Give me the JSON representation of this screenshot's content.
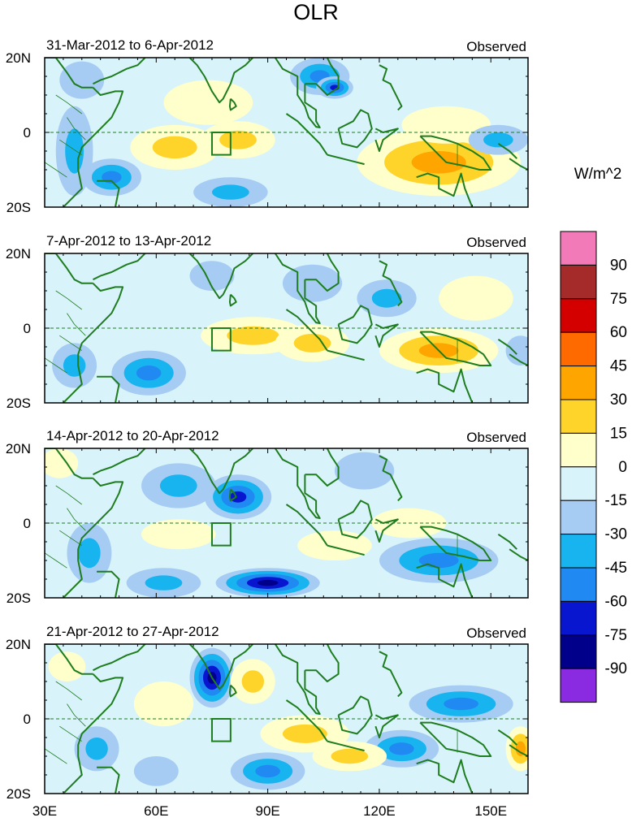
{
  "chart_data": {
    "type": "heatmap",
    "title": "OLR",
    "units_label": "W/m^2",
    "colors": {
      "land_outline": "#1e7d1e",
      "box": "#1e7d1e",
      "equator": "#1e7d1e"
    },
    "x_axis": {
      "range": [
        30,
        160
      ],
      "ticks": [
        30,
        60,
        90,
        120,
        150
      ],
      "tick_labels": [
        "30E",
        "60E",
        "90E",
        "120E",
        "150E"
      ]
    },
    "y_axis": {
      "range": [
        -20,
        20
      ],
      "ticks": [
        20,
        0,
        -20
      ],
      "tick_labels": [
        "20N",
        "0",
        "20S"
      ]
    },
    "colorbar": {
      "labels": [
        "90",
        "75",
        "60",
        "45",
        "30",
        "15",
        "0",
        "-15",
        "-30",
        "-45",
        "-60",
        "-75",
        "-90"
      ],
      "colors": [
        "#f37ab9",
        "#a52a2a",
        "#d40000",
        "#ff6a00",
        "#ffa500",
        "#ffd42a",
        "#ffffcc",
        "#d8f3fa",
        "#a6ccf4",
        "#17b4f0",
        "#2189f2",
        "#0816d0",
        "#00008b",
        "#8a2be2"
      ]
    },
    "box_region": {
      "lon": [
        75,
        80
      ],
      "lat": [
        -6,
        0
      ]
    },
    "panels": [
      {
        "date_range": "31-Mar-2012 to 6-Apr-2012",
        "tag": "Observed",
        "anomalies": [
          {
            "lon": 65,
            "lat": -4,
            "a": 12,
            "b": 6,
            "v": 30
          },
          {
            "lon": 82,
            "lat": -2,
            "a": 10,
            "b": 5,
            "v": 30
          },
          {
            "lon": 74,
            "lat": 8,
            "a": 12,
            "b": 6,
            "v": 15
          },
          {
            "lon": 136,
            "lat": -8,
            "a": 22,
            "b": 9,
            "v": 45
          },
          {
            "lon": 138,
            "lat": 2,
            "a": 12,
            "b": 5,
            "v": 15
          },
          {
            "lon": 104,
            "lat": 15,
            "a": 8,
            "b": 5,
            "v": -45
          },
          {
            "lon": 108,
            "lat": 12,
            "a": 5,
            "b": 3,
            "v": -60
          },
          {
            "lon": 48,
            "lat": -12,
            "a": 8,
            "b": 5,
            "v": -45
          },
          {
            "lon": 38,
            "lat": -5,
            "a": 5,
            "b": 12,
            "v": -30
          },
          {
            "lon": 40,
            "lat": 14,
            "a": 6,
            "b": 5,
            "v": -15
          },
          {
            "lon": 80,
            "lat": -16,
            "a": 10,
            "b": 4,
            "v": -30
          },
          {
            "lon": 152,
            "lat": -2,
            "a": 8,
            "b": 4,
            "v": -30
          }
        ]
      },
      {
        "date_range": "7-Apr-2012 to 13-Apr-2012",
        "tag": "Observed",
        "anomalies": [
          {
            "lon": 86,
            "lat": -2,
            "a": 14,
            "b": 5,
            "v": 30
          },
          {
            "lon": 102,
            "lat": -4,
            "a": 10,
            "b": 5,
            "v": 30
          },
          {
            "lon": 136,
            "lat": -6,
            "a": 16,
            "b": 6,
            "v": 45
          },
          {
            "lon": 146,
            "lat": 8,
            "a": 10,
            "b": 6,
            "v": 15
          },
          {
            "lon": 58,
            "lat": -12,
            "a": 10,
            "b": 6,
            "v": -45
          },
          {
            "lon": 38,
            "lat": -10,
            "a": 6,
            "b": 6,
            "v": -30
          },
          {
            "lon": 102,
            "lat": 12,
            "a": 8,
            "b": 5,
            "v": -15
          },
          {
            "lon": 122,
            "lat": 8,
            "a": 8,
            "b": 5,
            "v": -30
          },
          {
            "lon": 75,
            "lat": 14,
            "a": 6,
            "b": 4,
            "v": -15
          },
          {
            "lon": 158,
            "lat": -6,
            "a": 4,
            "b": 4,
            "v": -15
          }
        ]
      },
      {
        "date_range": "14-Apr-2012 to 20-Apr-2012",
        "tag": "Observed",
        "anomalies": [
          {
            "lon": 82,
            "lat": 7,
            "a": 9,
            "b": 6,
            "v": -60
          },
          {
            "lon": 66,
            "lat": 10,
            "a": 10,
            "b": 6,
            "v": -30
          },
          {
            "lon": 90,
            "lat": -16,
            "a": 14,
            "b": 4,
            "v": -75
          },
          {
            "lon": 62,
            "lat": -16,
            "a": 10,
            "b": 4,
            "v": -30
          },
          {
            "lon": 136,
            "lat": -10,
            "a": 16,
            "b": 6,
            "v": -45
          },
          {
            "lon": 116,
            "lat": 14,
            "a": 8,
            "b": 5,
            "v": -15
          },
          {
            "lon": 42,
            "lat": -8,
            "a": 6,
            "b": 8,
            "v": -30
          },
          {
            "lon": 66,
            "lat": -3,
            "a": 10,
            "b": 4,
            "v": 15
          },
          {
            "lon": 108,
            "lat": -6,
            "a": 10,
            "b": 4,
            "v": 15
          },
          {
            "lon": 128,
            "lat": 0,
            "a": 10,
            "b": 4,
            "v": 15
          },
          {
            "lon": 34,
            "lat": 16,
            "a": 5,
            "b": 4,
            "v": 15
          }
        ]
      },
      {
        "date_range": "21-Apr-2012 to 27-Apr-2012",
        "tag": "Observed",
        "anomalies": [
          {
            "lon": 75,
            "lat": 11,
            "a": 6,
            "b": 8,
            "v": -75
          },
          {
            "lon": 90,
            "lat": -14,
            "a": 10,
            "b": 5,
            "v": -45
          },
          {
            "lon": 142,
            "lat": 4,
            "a": 14,
            "b": 5,
            "v": -45
          },
          {
            "lon": 126,
            "lat": -8,
            "a": 10,
            "b": 5,
            "v": -45
          },
          {
            "lon": 44,
            "lat": -8,
            "a": 6,
            "b": 6,
            "v": -30
          },
          {
            "lon": 60,
            "lat": -14,
            "a": 6,
            "b": 4,
            "v": -15
          },
          {
            "lon": 100,
            "lat": -4,
            "a": 12,
            "b": 5,
            "v": 30
          },
          {
            "lon": 86,
            "lat": 10,
            "a": 6,
            "b": 6,
            "v": 30
          },
          {
            "lon": 62,
            "lat": 4,
            "a": 8,
            "b": 6,
            "v": 15
          },
          {
            "lon": 112,
            "lat": -10,
            "a": 10,
            "b": 4,
            "v": 30
          },
          {
            "lon": 158,
            "lat": -8,
            "a": 4,
            "b": 6,
            "v": 45
          },
          {
            "lon": 36,
            "lat": 14,
            "a": 5,
            "b": 4,
            "v": 15
          }
        ]
      }
    ]
  }
}
